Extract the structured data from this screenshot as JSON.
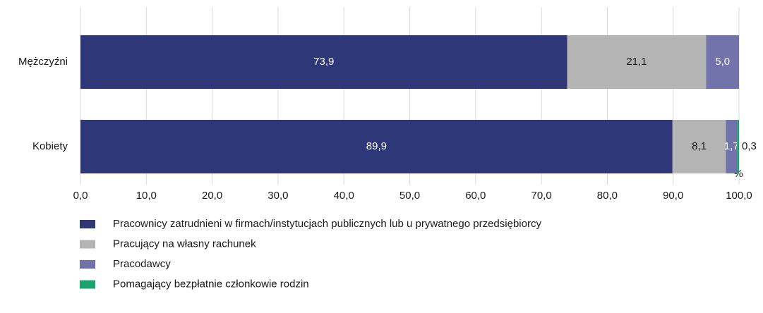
{
  "chart_data": {
    "type": "stacked_barh",
    "categories": [
      "Mężczyźni",
      "Kobiety"
    ],
    "series": [
      {
        "name": "Pracownicy zatrudnieni w firmach/instytucjach publicznych lub u prywatnego przedsiębiorcy",
        "color": "#2e3778",
        "values": [
          73.9,
          89.9
        ],
        "value_labels": [
          "73,9",
          "89,9"
        ]
      },
      {
        "name": "Pracujący na własny rachunek",
        "color": "#b4b4b4",
        "values": [
          21.1,
          8.1
        ],
        "value_labels": [
          "21,1",
          "8,1"
        ]
      },
      {
        "name": "Pracodawcy",
        "color": "#7273ab",
        "values": [
          5.0,
          1.7
        ],
        "value_labels": [
          "5,0",
          "1,7"
        ]
      },
      {
        "name": "Pomagający bezpłatnie członkowie rodzin",
        "color": "#1aa36b",
        "values": [
          null,
          0.3
        ],
        "value_labels": [
          null,
          "0,3"
        ]
      }
    ],
    "xlabel": "%",
    "xlim": [
      0,
      100
    ],
    "xticks": [
      {
        "value": 0,
        "label": "0,0"
      },
      {
        "value": 10,
        "label": "10,0"
      },
      {
        "value": 20,
        "label": "20,0"
      },
      {
        "value": 30,
        "label": "30,0"
      },
      {
        "value": 40,
        "label": "40,0"
      },
      {
        "value": 50,
        "label": "50,0"
      },
      {
        "value": 60,
        "label": "60,0"
      },
      {
        "value": 70,
        "label": "70,0"
      },
      {
        "value": 80,
        "label": "80,0"
      },
      {
        "value": 90,
        "label": "90,0"
      },
      {
        "value": 100,
        "label": "100,0"
      }
    ],
    "grid": true,
    "legend": "bottom-left"
  }
}
